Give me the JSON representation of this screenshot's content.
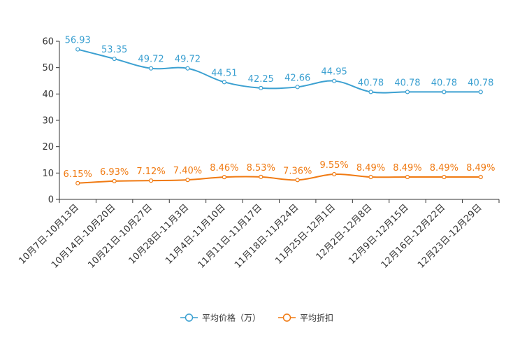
{
  "chart_data": {
    "type": "line",
    "title": "",
    "xlabel": "",
    "ylabel": "",
    "ylim": [
      0,
      60
    ],
    "yticks": [
      0,
      10,
      20,
      30,
      40,
      50,
      60
    ],
    "grid": false,
    "legend_position": "bottom-center",
    "categories": [
      "10月7日-10月13日",
      "10月14日-10月20日",
      "10月21日-10月27日",
      "10月28日-11月3日",
      "11月4日-11月10日",
      "11月11日-11月17日",
      "11月18日-11月24日",
      "11月25日-12月1日",
      "12月2日-12月8日",
      "12月9日-12月15日",
      "12月16日-12月22日",
      "12月23日-12月29日"
    ],
    "series": [
      {
        "name": "平均价格（万）",
        "color": "#3ba0d1",
        "values": [
          56.93,
          53.35,
          49.72,
          49.72,
          44.51,
          42.25,
          42.66,
          44.95,
          40.78,
          40.78,
          40.78,
          40.78
        ],
        "labels": [
          "56.93",
          "53.35",
          "49.72",
          "49.72",
          "44.51",
          "42.25",
          "42.66",
          "44.95",
          "40.78",
          "40.78",
          "40.78",
          "40.78"
        ]
      },
      {
        "name": "平均折扣",
        "color": "#f07a12",
        "values": [
          6.15,
          6.93,
          7.12,
          7.4,
          8.46,
          8.53,
          7.36,
          9.55,
          8.49,
          8.49,
          8.49,
          8.49
        ],
        "labels": [
          "6.15%",
          "6.93%",
          "7.12%",
          "7.40%",
          "8.46%",
          "8.53%",
          "7.36%",
          "9.55%",
          "8.49%",
          "8.49%",
          "8.49%",
          "8.49%"
        ]
      }
    ]
  }
}
